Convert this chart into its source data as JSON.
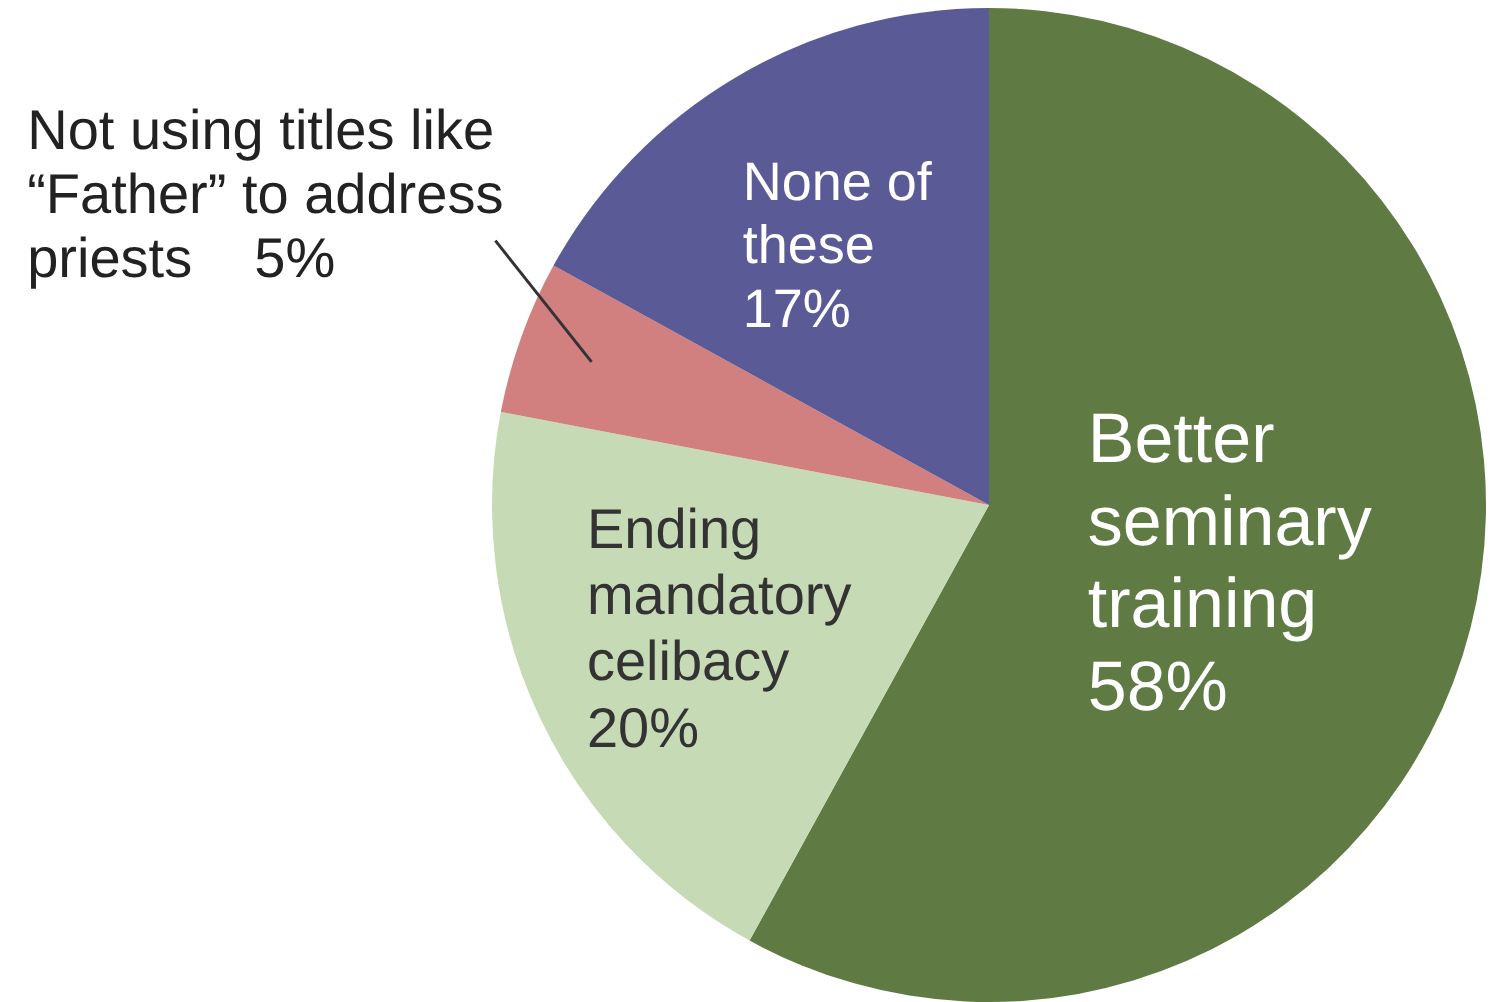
{
  "chart_data": {
    "type": "pie",
    "categories": [
      "Better seminary training",
      "Ending mandatory celibacy",
      "Not using titles like “Father” to address priests",
      "None of these"
    ],
    "values": [
      58,
      20,
      5,
      17
    ],
    "colors": [
      "#5f7a43",
      "#c6dbb5",
      "#d27f7f",
      "#5a5a97"
    ],
    "value_labels": [
      "58%",
      "20%",
      "5%",
      "17%"
    ],
    "legend": false
  }
}
